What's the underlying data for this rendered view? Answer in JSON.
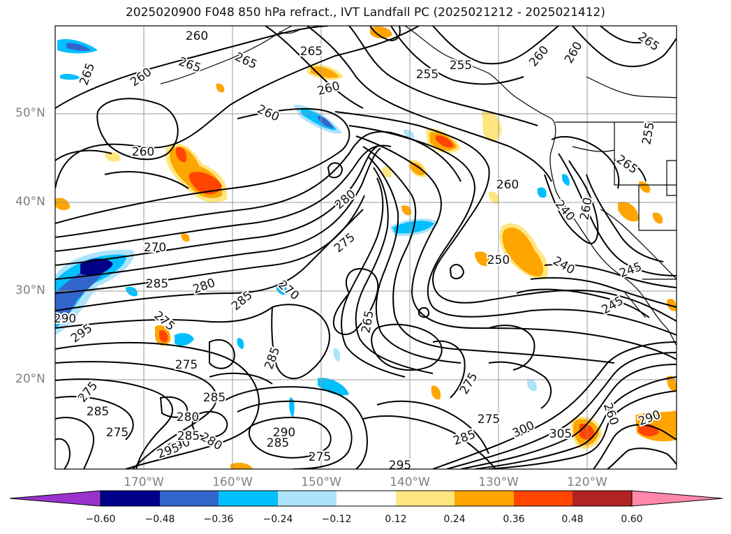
{
  "title": "2025020900 F048 850 hPa refract., IVT Landfall PC (2025021212 - 2025021412)",
  "lat_labels": [
    "50°N",
    "40°N",
    "30°N",
    "20°N"
  ],
  "lon_labels": [
    "170°W",
    "160°W",
    "150°W",
    "140°W",
    "130°W",
    "120°W"
  ],
  "contour_labels": [
    "260",
    "265",
    "265",
    "265",
    "265",
    "255",
    "255",
    "260",
    "260",
    "260",
    "265",
    "260",
    "260",
    "255",
    "260",
    "280",
    "275",
    "270",
    "285",
    "280",
    "285",
    "270",
    "275",
    "265",
    "260",
    "250",
    "240",
    "245",
    "245",
    "240",
    "260",
    "290",
    "275",
    "285",
    "275",
    "285",
    "285",
    "280",
    "290",
    "275",
    "290",
    "295",
    "285",
    "275",
    "280",
    "285",
    "275",
    "300",
    "305",
    "260",
    "290",
    "295",
    "295",
    "265",
    "285",
    "275"
  ],
  "colorbar": {
    "ticks": [
      "−0.60",
      "−0.48",
      "−0.36",
      "−0.24",
      "−0.12",
      "0.12",
      "0.24",
      "0.36",
      "0.48",
      "0.60"
    ],
    "colors": [
      "#9933cc",
      "#00008b",
      "#3366cc",
      "#00bfff",
      "#aee3fa",
      "#ffffff",
      "#ffe680",
      "#ffa500",
      "#ff4500",
      "#b22222",
      "#ff88aa"
    ]
  },
  "colors": {
    "contour": "#000000",
    "grid": "#999999",
    "coast": "#000000",
    "tick_label": "#808080"
  }
}
